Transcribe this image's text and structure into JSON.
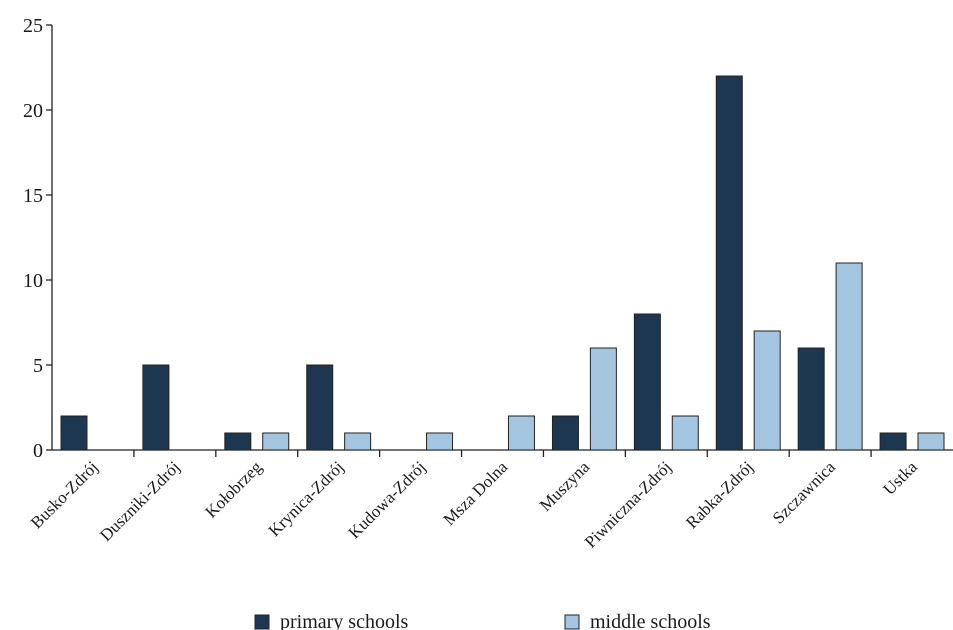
{
  "chart_data": {
    "type": "bar",
    "title": "",
    "xlabel": "",
    "ylabel": "",
    "ylim": [
      0,
      25
    ],
    "yticks": [
      0,
      5,
      10,
      15,
      20,
      25
    ],
    "grid": false,
    "legend_position": "bottom",
    "categories": [
      "Busko-Zdrój",
      "Duszniki-Zdrój",
      "Kołobrzeg",
      "Krynica-Zdrój",
      "Kudowa-Zdrój",
      "Msza Dolna",
      "Muszyna",
      "Piwniczna-Zdrój",
      "Rabka-Zdrój",
      "Szczawnica",
      "Ustka"
    ],
    "series": [
      {
        "name": "primary schools",
        "color": "#1d3750",
        "values": [
          2,
          5,
          1,
          5,
          0,
          0,
          2,
          8,
          22,
          6,
          1
        ]
      },
      {
        "name": "middle schools",
        "color": "#a3c5e0",
        "values": [
          0,
          0,
          1,
          1,
          1,
          2,
          6,
          2,
          7,
          11,
          1
        ]
      }
    ]
  }
}
